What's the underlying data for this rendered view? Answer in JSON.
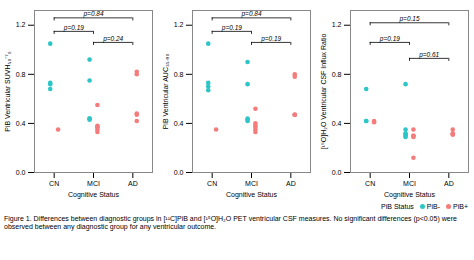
{
  "chart_data": [
    {
      "type": "scatter",
      "xlabel": "Cognitive Status",
      "ylabel": "PiB Ventricular SUVH₅₀⁻⁷₀",
      "categories": [
        "CN",
        "MCI",
        "AD"
      ],
      "ylim": [
        0.0,
        1.32
      ],
      "yticks": [
        {
          "value": 0.0,
          "label": "0.0"
        },
        0.4,
        0.8,
        1.2
      ],
      "series": [
        {
          "name": "PiB-",
          "color": "#2DC5C5",
          "values": [
            [
              1.05,
              0.73,
              0.72,
              0.68
            ],
            [
              0.92,
              0.75,
              0.44,
              0.44,
              0.43
            ],
            []
          ]
        },
        {
          "name": "PiB+",
          "color": "#F47C7C",
          "values": [
            [
              0.35
            ],
            [
              0.55,
              0.38,
              0.37,
              0.37,
              0.35,
              0.33
            ],
            [
              0.82,
              0.8,
              0.48,
              0.47,
              0.42
            ]
          ]
        }
      ],
      "annotations": [
        {
          "x1": "CN",
          "x2": "MCI",
          "y": 1.15,
          "label": "p=0.19"
        },
        {
          "x1": "CN",
          "x2": "AD",
          "y": 1.26,
          "label": "p=0.84"
        },
        {
          "x1": "MCI",
          "x2": "AD",
          "y": 1.06,
          "label": "p=0.24"
        }
      ]
    },
    {
      "type": "scatter",
      "xlabel": "Cognitive Status",
      "ylabel": "PiB Ventricular AUC₃₅₋₉₀",
      "categories": [
        "CN",
        "MCI",
        "AD"
      ],
      "ylim": [
        0.0,
        1.32
      ],
      "yticks": [
        {
          "value": 0.0,
          "label": "0.0"
        },
        0.4,
        0.8,
        1.2
      ],
      "series": [
        {
          "name": "PiB-",
          "color": "#2DC5C5",
          "values": [
            [
              1.05,
              0.73,
              0.7,
              0.67
            ],
            [
              0.9,
              0.72,
              0.44,
              0.43,
              0.42
            ],
            []
          ]
        },
        {
          "name": "PiB+",
          "color": "#F47C7C",
          "values": [
            [
              0.35
            ],
            [
              0.52,
              0.4,
              0.38,
              0.37,
              0.35,
              0.33
            ],
            [
              0.8,
              0.78,
              0.47,
              0.47,
              0.47
            ]
          ]
        }
      ],
      "annotations": [
        {
          "x1": "CN",
          "x2": "MCI",
          "y": 1.15,
          "label": "p=0.19"
        },
        {
          "x1": "CN",
          "x2": "AD",
          "y": 1.26,
          "label": "p=0.84"
        },
        {
          "x1": "MCI",
          "x2": "AD",
          "y": 1.06,
          "label": "p=0.19"
        }
      ]
    },
    {
      "type": "scatter",
      "xlabel": "Cognitive Status",
      "ylabel": "[¹⁵O]H₂O Ventricular CSF Influx Ratio",
      "categories": [
        "CN",
        "MCI",
        "AD"
      ],
      "ylim": [
        0.0,
        1.32
      ],
      "yticks": [
        {
          "value": 0.0,
          "label": "0.0"
        },
        0.4,
        0.8,
        1.2
      ],
      "series": [
        {
          "name": "PiB-",
          "color": "#2DC5C5",
          "values": [
            [
              0.68,
              0.42,
              0.42
            ],
            [
              0.72,
              0.35,
              0.32,
              0.31,
              0.3,
              0.29
            ],
            []
          ]
        },
        {
          "name": "PiB+",
          "color": "#F47C7C",
          "values": [
            [
              0.42,
              0.41
            ],
            [
              0.35,
              0.3,
              0.3,
              0.29,
              0.12
            ],
            [
              0.35,
              0.32,
              0.31,
              0.31
            ]
          ]
        }
      ],
      "annotations": [
        {
          "x1": "CN",
          "x2": "MCI",
          "y": 1.06,
          "label": "p=0.19"
        },
        {
          "x1": "CN",
          "x2": "AD",
          "y": 1.22,
          "label": "p=0.15"
        },
        {
          "x1": "MCI",
          "x2": "AD",
          "y": 0.93,
          "label": "p=0.61"
        }
      ],
      "legend": "lower right",
      "legend_title": "PiB Status"
    }
  ],
  "caption": "Figure 1. Differences between diagnostic groups in [¹¹C]PiB and [¹⁵O]H₂O PET ventricular CSF measures. No significant differences (p<0.05) were\nobserved between any diagnostic group for any ventricular outcome."
}
